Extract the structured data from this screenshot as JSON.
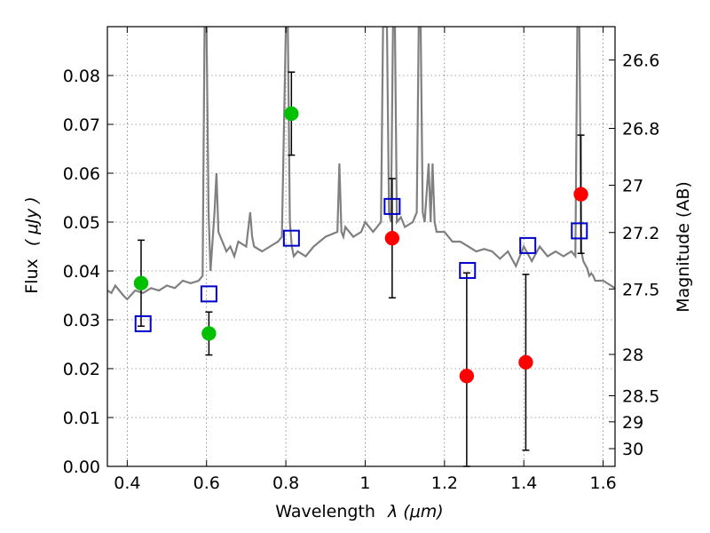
{
  "chart_data": {
    "type": "scatter",
    "xlabel_text": "Wavelength",
    "xlabel_math": "λ (μm)",
    "ylabel_text": "Flux",
    "ylabel_math": "( μJy )",
    "y2label": "Magnitude (AB)",
    "xlim": [
      0.35,
      1.63
    ],
    "ylim": [
      0.0,
      0.09
    ],
    "grid": true,
    "x_ticks": [
      0.4,
      0.6,
      0.8,
      1.0,
      1.2,
      1.4,
      1.6
    ],
    "x_tick_labels": [
      "0.4",
      "0.6",
      "0.8",
      "1",
      "1.2",
      "1.4",
      "1.6"
    ],
    "y_ticks": [
      0.0,
      0.01,
      0.02,
      0.03,
      0.04,
      0.05,
      0.06,
      0.07,
      0.08
    ],
    "y_tick_labels": [
      "0.00",
      "0.01",
      "0.02",
      "0.03",
      "0.04",
      "0.05",
      "0.06",
      "0.07",
      "0.08"
    ],
    "y2_ticks": [
      26.6,
      26.8,
      27.0,
      27.2,
      27.5,
      28.0,
      28.5,
      29.0,
      30.0
    ],
    "y2_tick_labels": [
      "26.6",
      "26.8",
      "27",
      "27.2",
      "27.5",
      "28",
      "28.5",
      "29",
      "30"
    ],
    "series": [
      {
        "marker": "circle-filled",
        "color": "#00c000",
        "points": [
          {
            "x": 0.435,
            "y": 0.0375,
            "err": 0.0088
          },
          {
            "x": 0.606,
            "y": 0.0272,
            "err": 0.0044
          },
          {
            "x": 0.814,
            "y": 0.0722,
            "err": 0.0085
          }
        ]
      },
      {
        "marker": "circle-filled",
        "color": "#ff0000",
        "points": [
          {
            "x": 1.068,
            "y": 0.0467,
            "err": 0.0122
          },
          {
            "x": 1.256,
            "y": 0.0185,
            "err": 0.0211
          },
          {
            "x": 1.405,
            "y": 0.0213,
            "err": 0.018
          },
          {
            "x": 1.544,
            "y": 0.0557,
            "err": 0.0121
          }
        ]
      },
      {
        "marker": "square-open",
        "color": "#0000cc",
        "points": [
          {
            "x": 0.44,
            "y": 0.0292
          },
          {
            "x": 0.606,
            "y": 0.0353
          },
          {
            "x": 0.814,
            "y": 0.0467
          },
          {
            "x": 1.068,
            "y": 0.0532
          },
          {
            "x": 1.258,
            "y": 0.0401
          },
          {
            "x": 1.41,
            "y": 0.0452
          },
          {
            "x": 1.54,
            "y": 0.0482
          }
        ]
      }
    ],
    "spectrum": {
      "color": "#808080",
      "x": [
        0.35,
        0.36,
        0.37,
        0.38,
        0.39,
        0.4,
        0.42,
        0.44,
        0.46,
        0.48,
        0.5,
        0.52,
        0.54,
        0.56,
        0.58,
        0.59,
        0.595,
        0.6,
        0.605,
        0.61,
        0.62,
        0.625,
        0.63,
        0.64,
        0.65,
        0.66,
        0.67,
        0.68,
        0.7,
        0.71,
        0.715,
        0.72,
        0.74,
        0.76,
        0.78,
        0.79,
        0.8,
        0.805,
        0.81,
        0.815,
        0.82,
        0.83,
        0.85,
        0.87,
        0.9,
        0.93,
        0.935,
        0.94,
        0.945,
        0.95,
        0.97,
        0.99,
        1.0,
        1.02,
        1.04,
        1.045,
        1.05,
        1.055,
        1.06,
        1.065,
        1.07,
        1.075,
        1.08,
        1.09,
        1.1,
        1.12,
        1.13,
        1.135,
        1.14,
        1.145,
        1.15,
        1.16,
        1.165,
        1.17,
        1.175,
        1.18,
        1.2,
        1.22,
        1.24,
        1.26,
        1.28,
        1.3,
        1.32,
        1.34,
        1.36,
        1.38,
        1.4,
        1.42,
        1.44,
        1.46,
        1.48,
        1.5,
        1.52,
        1.53,
        1.535,
        1.54,
        1.545,
        1.55,
        1.56,
        1.565,
        1.57,
        1.575,
        1.58,
        1.6,
        1.62,
        1.63
      ],
      "y": [
        0.036,
        0.0355,
        0.037,
        0.036,
        0.035,
        0.0342,
        0.036,
        0.0355,
        0.0365,
        0.036,
        0.037,
        0.0365,
        0.038,
        0.0375,
        0.038,
        0.039,
        0.09,
        0.09,
        0.052,
        0.04,
        0.052,
        0.06,
        0.048,
        0.046,
        0.044,
        0.045,
        0.043,
        0.046,
        0.045,
        0.052,
        0.047,
        0.045,
        0.044,
        0.045,
        0.046,
        0.047,
        0.09,
        0.09,
        0.05,
        0.045,
        0.043,
        0.044,
        0.043,
        0.045,
        0.047,
        0.048,
        0.062,
        0.048,
        0.047,
        0.049,
        0.047,
        0.048,
        0.05,
        0.048,
        0.05,
        0.09,
        0.09,
        0.09,
        0.052,
        0.05,
        0.09,
        0.09,
        0.05,
        0.051,
        0.049,
        0.05,
        0.052,
        0.09,
        0.09,
        0.052,
        0.05,
        0.062,
        0.05,
        0.062,
        0.05,
        0.048,
        0.048,
        0.046,
        0.046,
        0.045,
        0.044,
        0.0445,
        0.044,
        0.0425,
        0.044,
        0.041,
        0.045,
        0.042,
        0.045,
        0.043,
        0.044,
        0.043,
        0.044,
        0.043,
        0.09,
        0.09,
        0.044,
        0.042,
        0.0405,
        0.039,
        0.0395,
        0.039,
        0.038,
        0.038,
        0.037,
        0.0365
      ]
    }
  }
}
